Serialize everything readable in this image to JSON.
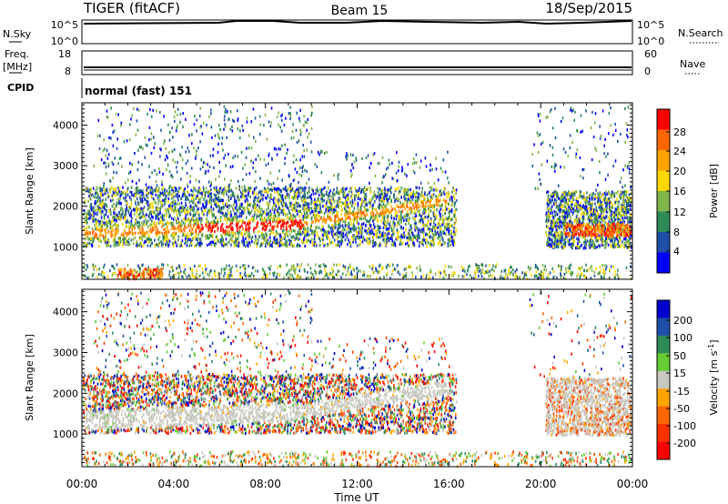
{
  "header": {
    "title": "TIGER (fitACF)",
    "beam": "Beam 15",
    "date": "18/Sep/2015"
  },
  "strips": {
    "nsky": {
      "left_label": "N.Sky",
      "right_label": "N.Search",
      "left_ticks": [
        "10^5",
        "10^0"
      ],
      "right_ticks": [
        "10^5",
        "10^0"
      ]
    },
    "freq": {
      "left_label_line1": "Freq.",
      "left_label_line2": "[MHz]",
      "right_label": "Nave",
      "left_ticks": [
        "18",
        "8"
      ],
      "right_ticks": [
        "60",
        "0"
      ]
    },
    "cpid": {
      "label": "CPID",
      "mode": "normal (fast) 151"
    }
  },
  "chart_data": [
    {
      "type": "heatmap",
      "panel": "power",
      "ylabel": "Slant Range [km]",
      "yticks": [
        1000,
        2000,
        3000,
        4000
      ],
      "ylim": [
        200,
        4550
      ],
      "xlim_hours": [
        0,
        24
      ],
      "colorbar": {
        "label": "Power [dB]",
        "ticks": [
          "28",
          "24",
          "20",
          "16",
          "12",
          "8",
          "4"
        ],
        "colors": [
          "#ff0000",
          "#ff6600",
          "#ffa500",
          "#ffd700",
          "#7fb54a",
          "#2e8b57",
          "#1f4fa8",
          "#0000ff"
        ]
      }
    },
    {
      "type": "heatmap",
      "panel": "velocity",
      "ylabel": "Slant Range [km]",
      "yticks": [
        1000,
        2000,
        3000,
        4000
      ],
      "ylim": [
        200,
        4550
      ],
      "xlim_hours": [
        0,
        24
      ],
      "xlabel": "Time UT",
      "xticks": [
        "00:00",
        "04:00",
        "08:00",
        "12:00",
        "16:00",
        "20:00",
        "00:00"
      ],
      "colorbar": {
        "label": "Velocity [m s",
        "label_sup": "-1",
        "label_close": "]",
        "ticks": [
          "200",
          "100",
          "50",
          "15",
          "-15",
          "-50",
          "-100",
          "-200"
        ],
        "colors": [
          "#0000cc",
          "#1f4fa8",
          "#2e8b57",
          "#66cc33",
          "#c8c8c0",
          "#ffa500",
          "#ff6600",
          "#ff3300",
          "#ff0000"
        ]
      }
    }
  ]
}
